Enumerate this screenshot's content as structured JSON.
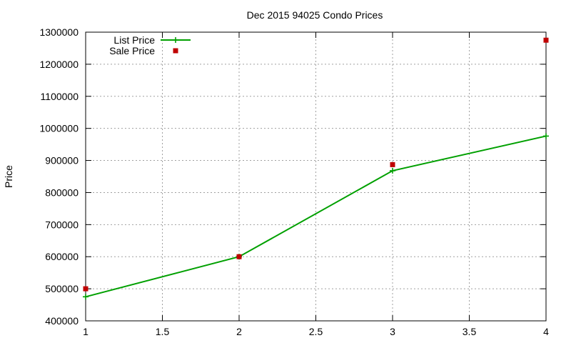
{
  "chart_data": {
    "type": "line",
    "title": "Dec 2015 94025 Condo Prices",
    "xlabel": "",
    "ylabel": "Price",
    "xlim": [
      1,
      4
    ],
    "ylim": [
      400000,
      1300000
    ],
    "x_ticks": [
      1,
      1.5,
      2,
      2.5,
      3,
      3.5,
      4
    ],
    "y_ticks": [
      400000,
      500000,
      600000,
      700000,
      800000,
      900000,
      1000000,
      1100000,
      1200000,
      1300000
    ],
    "grid": true,
    "legend_position": "top-left",
    "series": [
      {
        "name": "List Price",
        "style": "linespoints",
        "marker": "plus",
        "color": "#00a000",
        "x": [
          1,
          2,
          3,
          4
        ],
        "y": [
          475000,
          600000,
          868000,
          976000
        ]
      },
      {
        "name": "Sale Price",
        "style": "points",
        "marker": "square",
        "color": "#c00000",
        "x": [
          1,
          2,
          3,
          4
        ],
        "y": [
          500000,
          600000,
          887000,
          1275000
        ]
      }
    ]
  }
}
